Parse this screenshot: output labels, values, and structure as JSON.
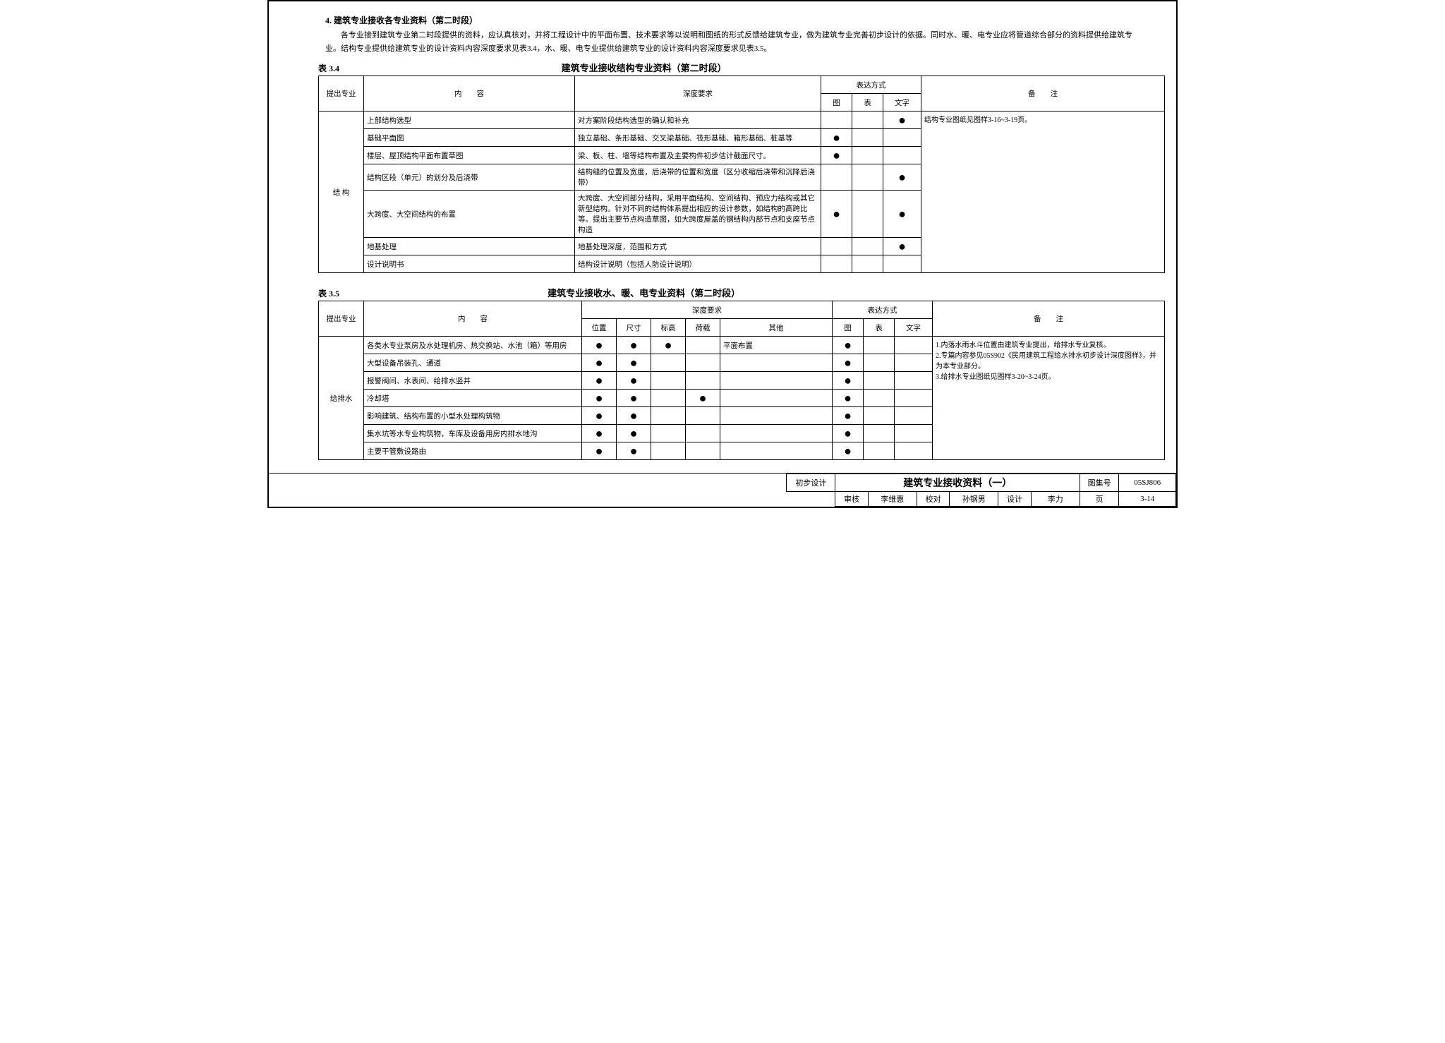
{
  "section_title": "4.  建筑专业接收各专业资料（第二时段）",
  "paragraph": "各专业接到建筑专业第二时段提供的资料，应认真核对，并将工程设计中的平面布置、技术要求等以说明和图纸的形式反馈给建筑专业，做为建筑专业完善初步设计的依据。同时水、暖、电专业应将管道综合部分的资料提供给建筑专业。结构专业提供给建筑专业的设计资料内容深度要求见表3.4，水、暖、电专业提供给建筑专业的设计资料内容深度要求见表3.5。",
  "table34": {
    "label": "表 3.4",
    "caption": "建筑专业接收结构专业资料（第二时段）",
    "headers": {
      "c1": "提出专业",
      "c2": "内　　容",
      "c3": "深度要求",
      "exp": "表达方式",
      "e1": "图",
      "e2": "表",
      "e3": "文字",
      "note": "备　　注"
    },
    "group": "结 构",
    "rows": [
      {
        "content": "上部结构选型",
        "depth": "对方案阶段结构选型的确认和补充",
        "tu": "",
        "biao": "",
        "wz": "●"
      },
      {
        "content": "基础平面图",
        "depth": "独立基础、条形基础、交叉梁基础、筏形基础、箱形基础、桩基等",
        "tu": "●",
        "biao": "",
        "wz": ""
      },
      {
        "content": "楼层、屋顶结构平面布置草图",
        "depth": "梁、板、柱、墙等结构布置及主要构件初步估计截面尺寸。",
        "tu": "●",
        "biao": "",
        "wz": ""
      },
      {
        "content": "结构区段（单元）的划分及后浇带",
        "depth": "结构缝的位置及宽度，后浇带的位置和宽度（区分收缩后浇带和沉降后浇带）",
        "tu": "",
        "biao": "",
        "wz": "●"
      },
      {
        "content": "大跨度、大空间结构的布置",
        "depth": "大跨度、大空间部分结构，采用平面结构、空间结构、预应力结构或其它新型结构。针对不同的结构体系提出相应的设计参数，如结构的高跨比等。提出主要节点构造草图，如大跨度屋盖的钢结构内部节点和支座节点构造",
        "tu": "●",
        "biao": "",
        "wz": "●"
      },
      {
        "content": "地基处理",
        "depth": "地基处理深度，范围和方式",
        "tu": "",
        "biao": "",
        "wz": "●"
      },
      {
        "content": "设计说明书",
        "depth": "结构设计说明（包括人防设计说明）",
        "tu": "",
        "biao": "",
        "wz": ""
      }
    ],
    "note": "结构专业图纸见图样3-16~3-19页。"
  },
  "table35": {
    "label": "表 3.5",
    "caption": "建筑专业接收水、暖、电专业资料（第二时段）",
    "headers": {
      "c1": "提出专业",
      "c2": "内　　容",
      "depth": "深度要求",
      "d1": "位置",
      "d2": "尺寸",
      "d3": "标高",
      "d4": "荷载",
      "d5": "其他",
      "exp": "表达方式",
      "e1": "图",
      "e2": "表",
      "e3": "文字",
      "note": "备　　注"
    },
    "group": "给排水",
    "rows": [
      {
        "content": "各类水专业泵房及水处理机房、热交换站、水池（箱）等用房",
        "d1": "●",
        "d2": "●",
        "d3": "●",
        "d4": "",
        "d5": "平面布置",
        "e1": "●",
        "e2": "",
        "e3": ""
      },
      {
        "content": "大型设备吊装孔、通道",
        "d1": "●",
        "d2": "●",
        "d3": "",
        "d4": "",
        "d5": "",
        "e1": "●",
        "e2": "",
        "e3": ""
      },
      {
        "content": "报警阀间、水表间、给排水竖井",
        "d1": "●",
        "d2": "●",
        "d3": "",
        "d4": "",
        "d5": "",
        "e1": "●",
        "e2": "",
        "e3": ""
      },
      {
        "content": "冷却塔",
        "d1": "●",
        "d2": "●",
        "d3": "",
        "d4": "●",
        "d5": "",
        "e1": "●",
        "e2": "",
        "e3": ""
      },
      {
        "content": "影响建筑、结构布置的小型水处理构筑物",
        "d1": "●",
        "d2": "●",
        "d3": "",
        "d4": "",
        "d5": "",
        "e1": "●",
        "e2": "",
        "e3": ""
      },
      {
        "content": "集水坑等水专业构筑物，车库及设备用房内排水地沟",
        "d1": "●",
        "d2": "●",
        "d3": "",
        "d4": "",
        "d5": "",
        "e1": "●",
        "e2": "",
        "e3": ""
      },
      {
        "content": "主要干管敷设路由",
        "d1": "●",
        "d2": "●",
        "d3": "",
        "d4": "",
        "d5": "",
        "e1": "●",
        "e2": "",
        "e3": ""
      }
    ],
    "note": "1.内落水雨水斗位置由建筑专业提出，给排水专业复核。\n2.专篇内容参见05S902《民用建筑工程给水排水初步设计深度图样》，并为本专业部分。\n3.给排水专业图纸见图样3-20~3-24页。"
  },
  "footer": {
    "stage": "初步设计",
    "title": "建筑专业接收资料（一）",
    "tuji_l": "图集号",
    "tuji_v": "05SJ806",
    "sh_l": "审核",
    "sh_v": "李维惠",
    "jd_l": "校对",
    "jd_v": "孙钢男",
    "sj_l": "设计",
    "sj_v": "李力",
    "pg_l": "页",
    "pg_v": "3-14"
  }
}
